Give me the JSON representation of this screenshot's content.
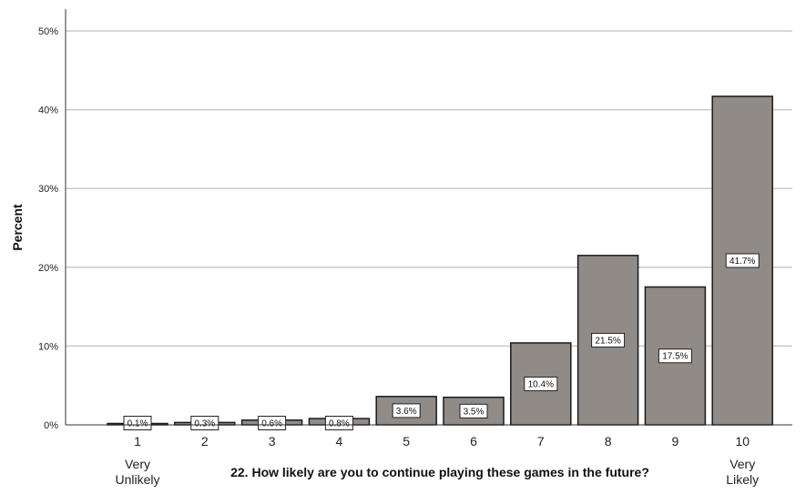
{
  "chart_data": {
    "type": "bar",
    "categories": [
      "1",
      "2",
      "3",
      "4",
      "5",
      "6",
      "7",
      "8",
      "9",
      "10"
    ],
    "values": [
      0.1,
      0.3,
      0.6,
      0.8,
      3.6,
      3.5,
      10.4,
      21.5,
      17.5,
      41.7
    ],
    "data_labels": [
      "0.1%",
      "0.3%",
      "0.6%",
      "0.8%",
      "3.6%",
      "3.5%",
      "10.4%",
      "21.5%",
      "17.5%",
      "41.7%"
    ],
    "xlabel": "22. How likely are you to continue playing these games in the future?",
    "ylabel": "Percent",
    "ylim": [
      0,
      50
    ],
    "yticks": [
      0,
      10,
      20,
      30,
      40,
      50
    ],
    "ytick_labels": [
      "0%",
      "10%",
      "20%",
      "30%",
      "40%",
      "50%"
    ],
    "x_anchor_labels": {
      "low": [
        "Very",
        "Unlikely"
      ],
      "high": [
        "Very",
        "Likely"
      ]
    },
    "grid": "horizontal",
    "bar_color": "#918b88",
    "bar_edge_color": "#1a1a1a",
    "gridline_color": "#c8c8c8"
  }
}
